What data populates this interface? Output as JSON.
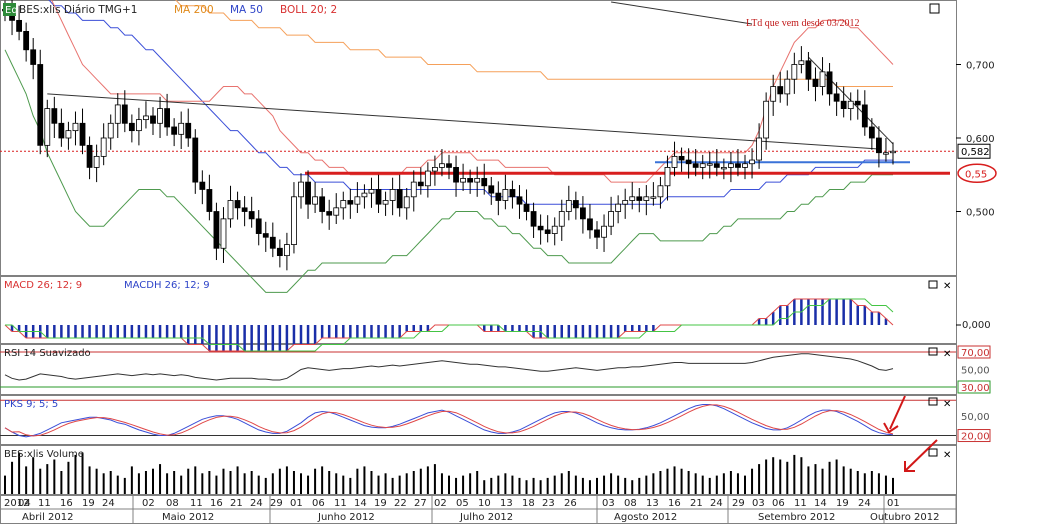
{
  "header": {
    "badge": "Eq",
    "symbol": "BES:xlis Diário TMG+1",
    "ind1": "MA 200",
    "ind2": "MA 50",
    "ind3": "BOLL 20; 2"
  },
  "annotation": "LTd que vem desde 03/2012",
  "colors": {
    "price_up": "#ffffff",
    "price_down": "#000000",
    "ma200": "#f5a05a",
    "ma50": "#3b4fd8",
    "boll_upper": "#e8736f",
    "boll_lower": "#4e9a4e",
    "support": "#d81e1e",
    "neckline": "#3a72d8",
    "macd": "#e04848",
    "signal": "#44c444",
    "histogram": "#1a2ea8",
    "rsi_line": "#333333",
    "rsi_up": "#c83232",
    "rsi_down": "#2a9a2a"
  },
  "price_axis": {
    "ticks": [
      "0,700",
      "0,600",
      "0,500"
    ],
    "ylim": [
      0.415,
      0.785
    ]
  },
  "current_price": "0,582",
  "support_label": "0,55",
  "panels": {
    "macd": {
      "title": "MACD 26; 12; 9",
      "sub": "MACDH 26; 12; 9",
      "tick": "0,000"
    },
    "rsi": {
      "title": "RSI 14 Suavizado",
      "ticks": [
        "70,00",
        "50,00",
        "30,00"
      ]
    },
    "pks": {
      "title": "PKS 9; 5; 5",
      "ticks": [
        "50,00",
        "20,00"
      ]
    },
    "volume": {
      "title": "BES:xlis Volume"
    }
  },
  "x_axis": {
    "days": [
      "2012",
      "04",
      "11",
      "16",
      "19",
      "24",
      "02",
      "08",
      "11",
      "16",
      "21",
      "24",
      "29",
      "01",
      "06",
      "11",
      "14",
      "19",
      "22",
      "27",
      "02",
      "05",
      "10",
      "13",
      "18",
      "23",
      "26",
      "03",
      "08",
      "13",
      "16",
      "21",
      "24",
      "29",
      "03",
      "06",
      "11",
      "14",
      "19",
      "24",
      "01"
    ],
    "months": [
      "Abril 2012",
      "Maio 2012",
      "Junho 2012",
      "Julho 2012",
      "Agosto 2012",
      "Setembro 2012",
      "Outubro 2012"
    ]
  },
  "chart_data": {
    "type": "candlestick",
    "title": "BES:xlis Diário TMG+1",
    "x": [
      "2012-04-02",
      "2012-04-03",
      "2012-04-04",
      "2012-04-05",
      "2012-04-10",
      "2012-04-11",
      "2012-04-12",
      "2012-04-13",
      "2012-04-16",
      "2012-04-17",
      "2012-04-18",
      "2012-04-19",
      "2012-04-20",
      "2012-04-23",
      "2012-04-24",
      "2012-04-26",
      "2012-04-27",
      "2012-04-30",
      "2012-05-02",
      "2012-05-03",
      "2012-05-04",
      "2012-05-07",
      "2012-05-08",
      "2012-05-09",
      "2012-05-10",
      "2012-05-11",
      "2012-05-14",
      "2012-05-15",
      "2012-05-16",
      "2012-05-17",
      "2012-05-18",
      "2012-05-21",
      "2012-05-22",
      "2012-05-23",
      "2012-05-24",
      "2012-05-25",
      "2012-05-28",
      "2012-05-29",
      "2012-05-30",
      "2012-05-31",
      "2012-06-01",
      "2012-06-04",
      "2012-06-05",
      "2012-06-06",
      "2012-06-07",
      "2012-06-08",
      "2012-06-11",
      "2012-06-12",
      "2012-06-13",
      "2012-06-14",
      "2012-06-15",
      "2012-06-18",
      "2012-06-19",
      "2012-06-20",
      "2012-06-21",
      "2012-06-22",
      "2012-06-25",
      "2012-06-26",
      "2012-06-27",
      "2012-06-28",
      "2012-06-29",
      "2012-07-02",
      "2012-07-03",
      "2012-07-04",
      "2012-07-05",
      "2012-07-06",
      "2012-07-09",
      "2012-07-10",
      "2012-07-11",
      "2012-07-12",
      "2012-07-13",
      "2012-07-16",
      "2012-07-17",
      "2012-07-18",
      "2012-07-19",
      "2012-07-20",
      "2012-07-23",
      "2012-07-24",
      "2012-07-25",
      "2012-07-26",
      "2012-07-27",
      "2012-07-30",
      "2012-07-31",
      "2012-08-01",
      "2012-08-02",
      "2012-08-03",
      "2012-08-06",
      "2012-08-07",
      "2012-08-08",
      "2012-08-09",
      "2012-08-10",
      "2012-08-13",
      "2012-08-14",
      "2012-08-15",
      "2012-08-16",
      "2012-08-17",
      "2012-08-20",
      "2012-08-21",
      "2012-08-22",
      "2012-08-23",
      "2012-08-24",
      "2012-08-27",
      "2012-08-28",
      "2012-08-29",
      "2012-08-30",
      "2012-08-31",
      "2012-09-03",
      "2012-09-04",
      "2012-09-05",
      "2012-09-06",
      "2012-09-07",
      "2012-09-10",
      "2012-09-11",
      "2012-09-12",
      "2012-09-13",
      "2012-09-14",
      "2012-09-17",
      "2012-09-18",
      "2012-09-19",
      "2012-09-20",
      "2012-09-21",
      "2012-09-24",
      "2012-09-25",
      "2012-09-26",
      "2012-09-27",
      "2012-09-28",
      "2012-10-01"
    ],
    "close": [
      0.775,
      0.76,
      0.745,
      0.72,
      0.7,
      0.59,
      0.64,
      0.62,
      0.6,
      0.61,
      0.62,
      0.59,
      0.56,
      0.575,
      0.6,
      0.62,
      0.645,
      0.62,
      0.61,
      0.625,
      0.63,
      0.62,
      0.64,
      0.615,
      0.605,
      0.62,
      0.6,
      0.54,
      0.53,
      0.5,
      0.45,
      0.49,
      0.515,
      0.505,
      0.5,
      0.49,
      0.47,
      0.465,
      0.45,
      0.44,
      0.455,
      0.52,
      0.54,
      0.51,
      0.52,
      0.5,
      0.495,
      0.505,
      0.515,
      0.51,
      0.52,
      0.525,
      0.53,
      0.51,
      0.515,
      0.53,
      0.505,
      0.52,
      0.54,
      0.535,
      0.555,
      0.56,
      0.565,
      0.56,
      0.54,
      0.545,
      0.54,
      0.545,
      0.535,
      0.525,
      0.515,
      0.53,
      0.52,
      0.51,
      0.5,
      0.48,
      0.475,
      0.47,
      0.48,
      0.5,
      0.515,
      0.505,
      0.49,
      0.475,
      0.465,
      0.48,
      0.5,
      0.51,
      0.515,
      0.52,
      0.515,
      0.52,
      0.52,
      0.535,
      0.56,
      0.575,
      0.57,
      0.565,
      0.56,
      0.565,
      0.565,
      0.56,
      0.56,
      0.565,
      0.56,
      0.565,
      0.57,
      0.6,
      0.65,
      0.67,
      0.66,
      0.68,
      0.7,
      0.705,
      0.68,
      0.67,
      0.69,
      0.66,
      0.65,
      0.64,
      0.65,
      0.645,
      0.615,
      0.6,
      0.58,
      0.58,
      0.582
    ],
    "ma200": [
      0.86,
      0.86,
      0.85,
      0.85,
      0.85,
      0.84,
      0.84,
      0.84,
      0.84,
      0.83,
      0.83,
      0.83,
      0.82,
      0.82,
      0.82,
      0.82,
      0.81,
      0.81,
      0.81,
      0.8,
      0.8,
      0.8,
      0.79,
      0.79,
      0.79,
      0.78,
      0.78,
      0.78,
      0.78,
      0.77,
      0.77,
      0.77,
      0.76,
      0.76,
      0.76,
      0.76,
      0.75,
      0.75,
      0.75,
      0.75,
      0.74,
      0.74,
      0.74,
      0.74,
      0.73,
      0.73,
      0.73,
      0.73,
      0.73,
      0.72,
      0.72,
      0.72,
      0.72,
      0.72,
      0.71,
      0.71,
      0.71,
      0.71,
      0.71,
      0.71,
      0.7,
      0.7,
      0.7,
      0.7,
      0.7,
      0.7,
      0.7,
      0.69,
      0.69,
      0.69,
      0.69,
      0.69,
      0.69,
      0.69,
      0.69,
      0.69,
      0.69,
      0.68,
      0.68,
      0.68,
      0.68,
      0.68,
      0.68,
      0.68,
      0.68,
      0.68,
      0.68,
      0.68,
      0.68,
      0.68,
      0.68,
      0.68,
      0.68,
      0.68,
      0.68,
      0.68,
      0.68,
      0.68,
      0.68,
      0.68,
      0.68,
      0.68,
      0.68,
      0.68,
      0.68,
      0.68,
      0.68,
      0.68,
      0.68,
      0.68,
      0.68,
      0.68,
      0.68,
      0.68,
      0.68,
      0.68,
      0.68,
      0.68,
      0.67,
      0.67,
      0.67,
      0.67,
      0.67,
      0.67,
      0.67,
      0.67,
      0.67
    ],
    "ma50": [
      0.8,
      0.8,
      0.8,
      0.79,
      0.79,
      0.79,
      0.79,
      0.78,
      0.78,
      0.77,
      0.77,
      0.76,
      0.76,
      0.76,
      0.76,
      0.75,
      0.75,
      0.74,
      0.74,
      0.73,
      0.72,
      0.72,
      0.71,
      0.7,
      0.69,
      0.68,
      0.67,
      0.66,
      0.65,
      0.64,
      0.63,
      0.62,
      0.61,
      0.61,
      0.6,
      0.59,
      0.58,
      0.58,
      0.57,
      0.56,
      0.56,
      0.55,
      0.55,
      0.55,
      0.54,
      0.54,
      0.54,
      0.54,
      0.54,
      0.53,
      0.53,
      0.53,
      0.53,
      0.53,
      0.53,
      0.53,
      0.53,
      0.53,
      0.53,
      0.53,
      0.53,
      0.53,
      0.53,
      0.53,
      0.53,
      0.53,
      0.53,
      0.53,
      0.53,
      0.52,
      0.52,
      0.52,
      0.52,
      0.52,
      0.51,
      0.51,
      0.51,
      0.51,
      0.51,
      0.51,
      0.51,
      0.51,
      0.51,
      0.51,
      0.51,
      0.51,
      0.51,
      0.51,
      0.51,
      0.51,
      0.51,
      0.51,
      0.51,
      0.51,
      0.52,
      0.52,
      0.52,
      0.52,
      0.52,
      0.52,
      0.52,
      0.52,
      0.52,
      0.53,
      0.53,
      0.53,
      0.53,
      0.53,
      0.54,
      0.54,
      0.54,
      0.55,
      0.55,
      0.55,
      0.55,
      0.56,
      0.56,
      0.56,
      0.56,
      0.56,
      0.56,
      0.56,
      0.57,
      0.57,
      0.57,
      0.57,
      0.57
    ],
    "boll_upper": [
      0.87,
      0.87,
      0.86,
      0.85,
      0.84,
      0.82,
      0.8,
      0.78,
      0.76,
      0.74,
      0.72,
      0.7,
      0.69,
      0.68,
      0.67,
      0.66,
      0.66,
      0.66,
      0.66,
      0.66,
      0.66,
      0.66,
      0.66,
      0.65,
      0.65,
      0.65,
      0.65,
      0.65,
      0.65,
      0.65,
      0.66,
      0.67,
      0.67,
      0.67,
      0.66,
      0.66,
      0.65,
      0.64,
      0.63,
      0.61,
      0.6,
      0.59,
      0.58,
      0.58,
      0.57,
      0.57,
      0.56,
      0.56,
      0.56,
      0.55,
      0.55,
      0.55,
      0.55,
      0.55,
      0.55,
      0.55,
      0.55,
      0.56,
      0.56,
      0.56,
      0.57,
      0.57,
      0.58,
      0.58,
      0.58,
      0.58,
      0.58,
      0.57,
      0.57,
      0.57,
      0.57,
      0.56,
      0.56,
      0.56,
      0.56,
      0.56,
      0.56,
      0.56,
      0.55,
      0.55,
      0.55,
      0.55,
      0.55,
      0.55,
      0.55,
      0.55,
      0.54,
      0.54,
      0.54,
      0.54,
      0.54,
      0.54,
      0.55,
      0.56,
      0.57,
      0.58,
      0.58,
      0.58,
      0.58,
      0.58,
      0.58,
      0.58,
      0.58,
      0.58,
      0.58,
      0.58,
      0.59,
      0.61,
      0.64,
      0.67,
      0.69,
      0.71,
      0.73,
      0.74,
      0.75,
      0.75,
      0.76,
      0.76,
      0.76,
      0.76,
      0.75,
      0.75,
      0.74,
      0.73,
      0.72,
      0.71,
      0.7
    ],
    "boll_lower": [
      0.72,
      0.7,
      0.68,
      0.66,
      0.63,
      0.61,
      0.58,
      0.56,
      0.54,
      0.52,
      0.5,
      0.49,
      0.48,
      0.48,
      0.48,
      0.49,
      0.5,
      0.51,
      0.52,
      0.53,
      0.53,
      0.53,
      0.53,
      0.52,
      0.52,
      0.51,
      0.5,
      0.49,
      0.48,
      0.47,
      0.46,
      0.45,
      0.44,
      0.43,
      0.42,
      0.41,
      0.4,
      0.39,
      0.39,
      0.39,
      0.39,
      0.4,
      0.41,
      0.42,
      0.42,
      0.43,
      0.43,
      0.43,
      0.43,
      0.43,
      0.43,
      0.43,
      0.43,
      0.43,
      0.43,
      0.44,
      0.44,
      0.44,
      0.45,
      0.46,
      0.47,
      0.48,
      0.49,
      0.49,
      0.5,
      0.5,
      0.5,
      0.5,
      0.49,
      0.49,
      0.48,
      0.48,
      0.47,
      0.47,
      0.46,
      0.45,
      0.45,
      0.44,
      0.44,
      0.44,
      0.43,
      0.43,
      0.43,
      0.43,
      0.43,
      0.43,
      0.43,
      0.44,
      0.45,
      0.46,
      0.47,
      0.47,
      0.47,
      0.46,
      0.46,
      0.46,
      0.46,
      0.46,
      0.46,
      0.46,
      0.47,
      0.47,
      0.48,
      0.48,
      0.49,
      0.49,
      0.49,
      0.49,
      0.49,
      0.49,
      0.49,
      0.5,
      0.5,
      0.51,
      0.51,
      0.52,
      0.52,
      0.53,
      0.53,
      0.53,
      0.54,
      0.54,
      0.54,
      0.55,
      0.55,
      0.55,
      0.55
    ],
    "macd": [
      0.0,
      -0.01,
      -0.01,
      -0.02,
      -0.02,
      -0.02,
      -0.02,
      -0.02,
      -0.02,
      -0.02,
      -0.02,
      -0.02,
      -0.02,
      -0.02,
      -0.02,
      -0.02,
      -0.02,
      -0.02,
      -0.02,
      -0.02,
      -0.02,
      -0.02,
      -0.02,
      -0.02,
      -0.02,
      -0.02,
      -0.03,
      -0.03,
      -0.03,
      -0.04,
      -0.04,
      -0.04,
      -0.04,
      -0.04,
      -0.04,
      -0.04,
      -0.04,
      -0.04,
      -0.04,
      -0.04,
      -0.04,
      -0.03,
      -0.03,
      -0.03,
      -0.03,
      -0.02,
      -0.02,
      -0.02,
      -0.02,
      -0.02,
      -0.02,
      -0.02,
      -0.02,
      -0.02,
      -0.02,
      -0.02,
      -0.02,
      -0.01,
      -0.01,
      -0.01,
      -0.01,
      0.0,
      0.0,
      0.0,
      0.0,
      0.0,
      0.0,
      0.0,
      -0.01,
      -0.01,
      -0.01,
      -0.01,
      -0.01,
      -0.01,
      -0.01,
      -0.02,
      -0.02,
      -0.02,
      -0.02,
      -0.02,
      -0.02,
      -0.02,
      -0.02,
      -0.02,
      -0.02,
      -0.02,
      -0.02,
      -0.02,
      -0.01,
      -0.01,
      -0.01,
      -0.01,
      -0.01,
      0.0,
      0.0,
      0.0,
      0.0,
      0.0,
      0.0,
      0.0,
      0.0,
      0.0,
      0.0,
      0.0,
      0.0,
      0.0,
      0.0,
      0.01,
      0.01,
      0.02,
      0.03,
      0.03,
      0.04,
      0.04,
      0.04,
      0.04,
      0.04,
      0.04,
      0.04,
      0.04,
      0.04,
      0.03,
      0.03,
      0.02,
      0.02,
      0.01,
      0.0
    ],
    "signal": [
      0.0,
      0.0,
      -0.01,
      -0.01,
      -0.01,
      -0.01,
      -0.02,
      -0.02,
      -0.02,
      -0.02,
      -0.02,
      -0.02,
      -0.02,
      -0.02,
      -0.02,
      -0.02,
      -0.02,
      -0.02,
      -0.02,
      -0.02,
      -0.02,
      -0.02,
      -0.02,
      -0.02,
      -0.02,
      -0.02,
      -0.02,
      -0.02,
      -0.02,
      -0.03,
      -0.03,
      -0.03,
      -0.03,
      -0.03,
      -0.04,
      -0.04,
      -0.04,
      -0.04,
      -0.04,
      -0.04,
      -0.04,
      -0.04,
      -0.04,
      -0.04,
      -0.04,
      -0.03,
      -0.03,
      -0.03,
      -0.03,
      -0.02,
      -0.02,
      -0.02,
      -0.02,
      -0.02,
      -0.02,
      -0.02,
      -0.02,
      -0.02,
      -0.02,
      -0.01,
      -0.01,
      -0.01,
      -0.01,
      0.0,
      0.0,
      0.0,
      0.0,
      0.0,
      0.0,
      0.0,
      0.0,
      -0.01,
      -0.01,
      -0.01,
      -0.01,
      -0.01,
      -0.01,
      -0.02,
      -0.02,
      -0.02,
      -0.02,
      -0.02,
      -0.02,
      -0.02,
      -0.02,
      -0.02,
      -0.02,
      -0.02,
      -0.02,
      -0.02,
      -0.02,
      -0.01,
      -0.01,
      -0.01,
      -0.01,
      -0.01,
      0.0,
      0.0,
      0.0,
      0.0,
      0.0,
      0.0,
      0.0,
      0.0,
      0.0,
      0.0,
      0.0,
      0.0,
      0.0,
      0.0,
      0.01,
      0.01,
      0.02,
      0.02,
      0.03,
      0.03,
      0.03,
      0.04,
      0.04,
      0.04,
      0.04,
      0.04,
      0.04,
      0.03,
      0.03,
      0.03,
      0.02
    ],
    "rsi": [
      44,
      40,
      38,
      39,
      42,
      45,
      44,
      43,
      42,
      40,
      39,
      40,
      41,
      42,
      43,
      44,
      45,
      44,
      43,
      44,
      45,
      44,
      45,
      44,
      43,
      44,
      43,
      41,
      40,
      39,
      38,
      39,
      40,
      40,
      40,
      40,
      39,
      39,
      38,
      38,
      40,
      45,
      50,
      52,
      51,
      50,
      49,
      50,
      51,
      51,
      52,
      53,
      54,
      53,
      54,
      55,
      54,
      55,
      56,
      57,
      58,
      59,
      60,
      59,
      58,
      57,
      56,
      56,
      55,
      54,
      53,
      53,
      52,
      51,
      50,
      49,
      48,
      48,
      49,
      50,
      51,
      52,
      51,
      50,
      49,
      50,
      51,
      52,
      52,
      53,
      53,
      54,
      55,
      56,
      57,
      58,
      58,
      57,
      57,
      57,
      57,
      57,
      57,
      57,
      57,
      57,
      58,
      60,
      62,
      64,
      65,
      66,
      67,
      68,
      68,
      67,
      66,
      65,
      64,
      63,
      62,
      60,
      57,
      54,
      50,
      49,
      51
    ],
    "pks": [
      33,
      27,
      22,
      20,
      22,
      25,
      30,
      35,
      40,
      42,
      44,
      46,
      48,
      48,
      46,
      44,
      40,
      38,
      34,
      30,
      27,
      24,
      22,
      22,
      25,
      30,
      35,
      40,
      45,
      48,
      50,
      50,
      48,
      45,
      40,
      35,
      30,
      27,
      25,
      25,
      28,
      34,
      40,
      48,
      54,
      56,
      55,
      52,
      48,
      44,
      40,
      36,
      34,
      33,
      33,
      35,
      38,
      42,
      46,
      50,
      54,
      56,
      58,
      55,
      50,
      45,
      40,
      35,
      30,
      27,
      25,
      25,
      27,
      30,
      35,
      40,
      45,
      50,
      54,
      56,
      56,
      54,
      50,
      45,
      40,
      36,
      33,
      31,
      30,
      30,
      31,
      33,
      36,
      40,
      45,
      50,
      55,
      60,
      64,
      66,
      66,
      64,
      60,
      55,
      50,
      45,
      40,
      36,
      32,
      30,
      30,
      33,
      38,
      44,
      50,
      55,
      58,
      58,
      56,
      52,
      47,
      42,
      36,
      30,
      26,
      24,
      23
    ],
    "volume": [
      40,
      70,
      90,
      60,
      80,
      55,
      65,
      75,
      50,
      70,
      85,
      90,
      60,
      55,
      45,
      50,
      40,
      35,
      60,
      45,
      50,
      55,
      65,
      45,
      50,
      40,
      55,
      60,
      45,
      50,
      40,
      55,
      50,
      60,
      45,
      50,
      40,
      35,
      45,
      55,
      60,
      50,
      45,
      40,
      55,
      60,
      50,
      45,
      40,
      35,
      55,
      60,
      50,
      40,
      45,
      35,
      40,
      45,
      50,
      55,
      60,
      65,
      45,
      40,
      35,
      40,
      45,
      50,
      30,
      35,
      40,
      45,
      40,
      35,
      30,
      35,
      30,
      35,
      40,
      45,
      50,
      40,
      35,
      30,
      35,
      40,
      45,
      40,
      35,
      30,
      35,
      40,
      45,
      50,
      55,
      60,
      55,
      50,
      45,
      40,
      35,
      40,
      45,
      50,
      45,
      40,
      55,
      65,
      75,
      80,
      75,
      70,
      85,
      80,
      60,
      65,
      55,
      70,
      75,
      60,
      55,
      50,
      45,
      50,
      45,
      40,
      35
    ]
  }
}
